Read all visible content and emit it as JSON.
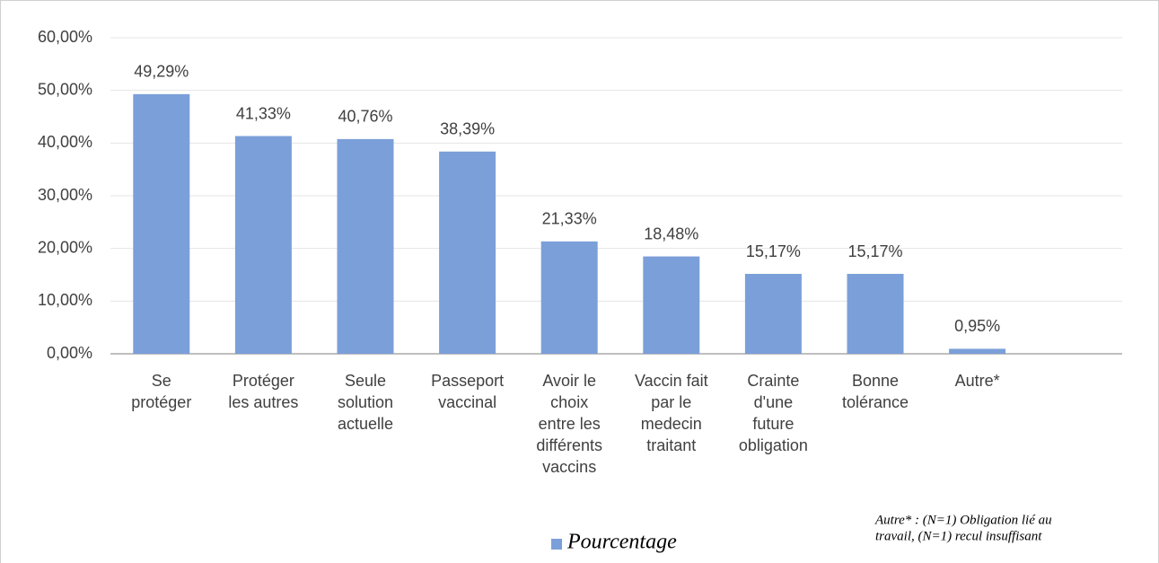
{
  "chart_data": {
    "type": "bar",
    "categories": [
      "Se protéger",
      "Protéger les autres",
      "Seule solution actuelle",
      "Passeport vaccinal",
      "Avoir le choix entre les différents vaccins",
      "Vaccin fait par le medecin traitant",
      "Crainte d'une future obligation",
      "Bonne tolérance",
      "Autre*"
    ],
    "series": [
      {
        "name": "Pourcentage",
        "color": "#7b9fd9",
        "values": [
          49.29,
          41.33,
          40.76,
          38.39,
          21.33,
          18.48,
          15.17,
          15.17,
          0.95
        ],
        "value_labels": [
          "49,29%",
          "41,33%",
          "40,76%",
          "38,39%",
          "21,33%",
          "18,48%",
          "15,17%",
          "15,17%",
          "0,95%"
        ]
      }
    ],
    "ylim": [
      0,
      60
    ],
    "yticks": [
      {
        "value": 0,
        "label": "0,00%"
      },
      {
        "value": 10,
        "label": "10,00%"
      },
      {
        "value": 20,
        "label": "20,00%"
      },
      {
        "value": 30,
        "label": "30,00%"
      },
      {
        "value": 40,
        "label": "40,00%"
      },
      {
        "value": 50,
        "label": "50,00%"
      },
      {
        "value": 60,
        "label": "60,00%"
      }
    ],
    "grid": true,
    "legend": "bottom",
    "note": [
      "Autre* : (N=1) Obligation lié au",
      "travail, (N=1) recul insuffisant"
    ]
  }
}
